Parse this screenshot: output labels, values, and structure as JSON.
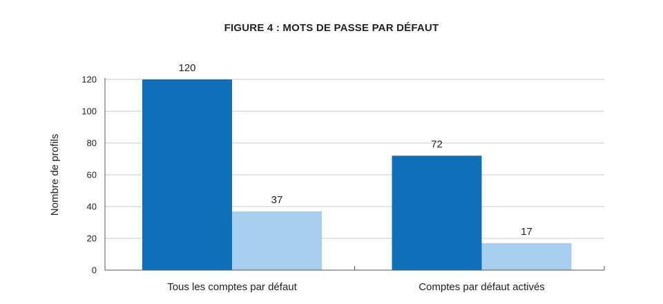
{
  "chart_data": {
    "type": "bar",
    "title": "FIGURE 4 : MOTS DE PASSE PAR DÉFAUT",
    "ylabel": "Nombre de profils",
    "xlabel": "",
    "categories": [
      "Tous les comptes par défaut",
      "Comptes par défaut activés"
    ],
    "series": [
      {
        "values": [
          120,
          72
        ],
        "color": "#0f6fb8"
      },
      {
        "values": [
          37,
          17
        ],
        "color": "#a8cfee"
      }
    ],
    "ylim": [
      0,
      120
    ],
    "yticks": [
      "0",
      "20",
      "40",
      "60",
      "80",
      "100",
      "120"
    ],
    "grid": true,
    "legend": "none"
  }
}
